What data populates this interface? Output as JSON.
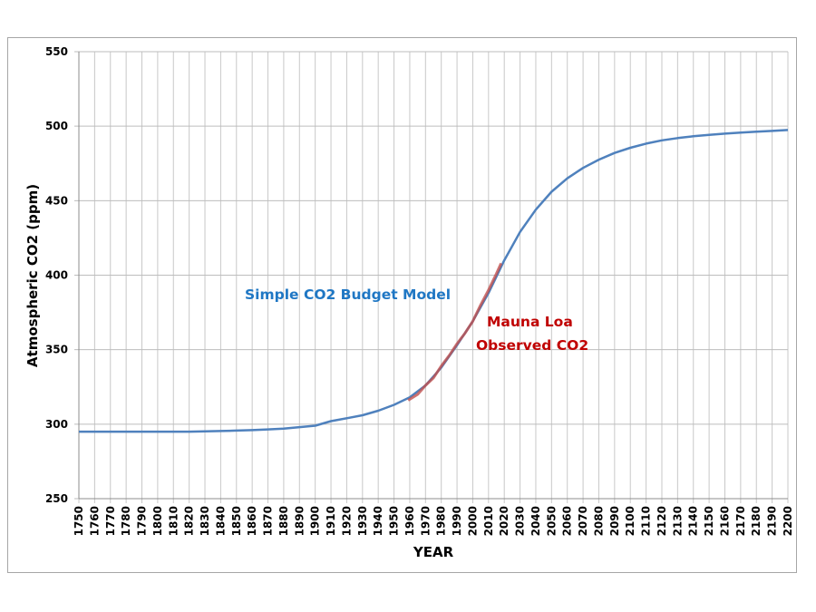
{
  "chart_data": {
    "type": "line",
    "title": "",
    "xlabel": "YEAR",
    "ylabel": "Atmospheric CO2 (ppm)",
    "xlim": [
      1750,
      2200
    ],
    "ylim": [
      250,
      550
    ],
    "yticks": [
      250,
      300,
      350,
      400,
      450,
      500,
      550
    ],
    "xticks_step": 10,
    "grid": true,
    "annotations": [
      {
        "text": "Simple CO2 Budget Model",
        "color": "#1f77c4"
      },
      {
        "text_lines": [
          "Mauna Loa",
          "Observed CO2"
        ],
        "color": "#c00000"
      }
    ],
    "series": [
      {
        "color": "#4f81bd",
        "x": [
          1750,
          1760,
          1770,
          1780,
          1790,
          1800,
          1810,
          1820,
          1830,
          1840,
          1850,
          1860,
          1870,
          1880,
          1890,
          1900,
          1910,
          1920,
          1930,
          1940,
          1950,
          1960,
          1970,
          1980,
          1990,
          2000,
          2010,
          2020,
          2030,
          2040,
          2050,
          2060,
          2070,
          2080,
          2090,
          2100,
          2110,
          2120,
          2130,
          2140,
          2150,
          2160,
          2170,
          2180,
          2190,
          2200
        ],
        "y": [
          295,
          295,
          295,
          295,
          295,
          295,
          295,
          295,
          295.2,
          295.4,
          295.7,
          296,
          296.5,
          297,
          298,
          299,
          302,
          304,
          306,
          309,
          313,
          318,
          326,
          338,
          353,
          369,
          388,
          410,
          429,
          444,
          456,
          465,
          472,
          477.5,
          482,
          485.5,
          488.3,
          490.5,
          492,
          493.2,
          494.2,
          495,
          495.7,
          496.3,
          496.8,
          497.4
        ]
      },
      {
        "color": "#c0504d",
        "x": [
          1959,
          1965,
          1970,
          1975,
          1980,
          1985,
          1990,
          1995,
          2000,
          2005,
          2010,
          2015,
          2018
        ],
        "y": [
          316,
          320,
          326,
          331,
          339,
          346,
          354,
          361,
          369,
          380,
          390,
          401,
          408
        ]
      }
    ]
  }
}
